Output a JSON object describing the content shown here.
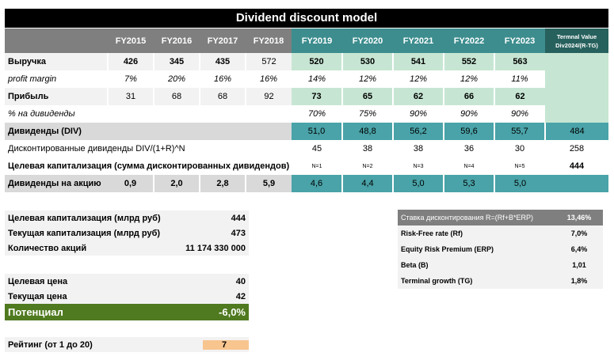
{
  "title": "Dividend discount model",
  "header": {
    "years": [
      "FY2015",
      "FY2016",
      "FY2017",
      "FY2018",
      "FY2019",
      "FY2020",
      "FY2021",
      "FY2022",
      "FY2023"
    ],
    "terminal_line1": "Termnal Value",
    "terminal_line2": "Div2024/(R-TG)"
  },
  "rows": {
    "revenue": {
      "label": "Выручка",
      "values": [
        "426",
        "345",
        "435",
        "572",
        "520",
        "530",
        "541",
        "552",
        "563"
      ]
    },
    "margin": {
      "label": "profit margin",
      "values": [
        "7%",
        "20%",
        "16%",
        "16%",
        "14%",
        "12%",
        "12%",
        "12%",
        "11%"
      ]
    },
    "profit": {
      "label": "Прибыль",
      "values": [
        "31",
        "68",
        "68",
        "92",
        "73",
        "65",
        "62",
        "66",
        "62"
      ]
    },
    "payout": {
      "label": "% на дивиденды",
      "values": [
        "",
        "",
        "",
        "",
        "70%",
        "75%",
        "90%",
        "90%",
        "90%"
      ]
    },
    "div": {
      "label": "Дивиденды (DIV)",
      "values": [
        "",
        "",
        "",
        "",
        "51,0",
        "48,8",
        "56,2",
        "59,6",
        "55,7"
      ],
      "terminal": "484"
    },
    "disc": {
      "label": "Дисконтированные дивиденды DIV/(1+R)^N",
      "values": [
        "45",
        "38",
        "38",
        "36",
        "30"
      ],
      "terminal": "258"
    },
    "target": {
      "label": "Целевая капитализация (сумма дисконтированных дивидендов)",
      "values": [
        "N=1",
        "N=2",
        "N=3",
        "N=4",
        "N=5"
      ],
      "terminal": "444"
    },
    "dps": {
      "label": "Дивиденды на акцию",
      "values": [
        "0,9",
        "2,0",
        "2,8",
        "5,9",
        "4,6",
        "4,4",
        "5,0",
        "5,3",
        "5,0"
      ]
    }
  },
  "summary": {
    "target_cap": {
      "label": "Целевая капитализация (млрд руб)",
      "value": "444"
    },
    "current_cap": {
      "label": "Текущая капитализация (млрд руб)",
      "value": "473"
    },
    "shares": {
      "label": "Количество акций",
      "value": "11 174 330 000"
    },
    "target_price": {
      "label": "Целевая цена",
      "value": "40"
    },
    "current_price": {
      "label": "Текущая цена",
      "value": "42"
    },
    "potential": {
      "label": "Потенциал",
      "value": "-6,0%"
    },
    "rating": {
      "label": "Рейтинг (от 1 до 20)",
      "value": "7"
    }
  },
  "rates": {
    "discount": {
      "label": "Ставка дисконтирования R=(Rf+B*ERP)",
      "value": "13,46%"
    },
    "rf": {
      "label": "Risk-Free rate (Rf)",
      "value": "7,0%"
    },
    "erp": {
      "label": "Equity Risk Premium (ERP)",
      "value": "6,4%"
    },
    "beta": {
      "label": "Beta (B)",
      "value": "1,01"
    },
    "tg": {
      "label": "Terminal growth (TG)",
      "value": "1,8%"
    }
  },
  "colors": {
    "header_gray": "#7f7f7f",
    "forecast_teal": "#3d8d8e",
    "terminal_dark": "#27615d",
    "forecast_fill": "#c6e6d3",
    "dividend_fill": "#49a3a8",
    "potential_green": "#4f7a1f",
    "rating_orange": "#f8c58f"
  }
}
